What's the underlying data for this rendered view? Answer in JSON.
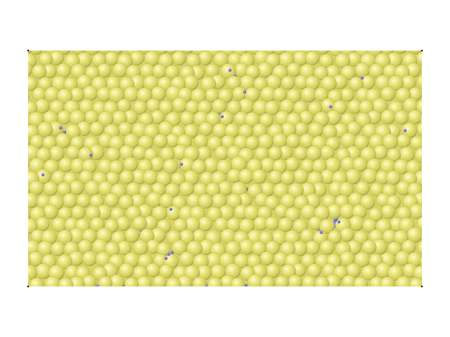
{
  "scene": {
    "background_color": "#ffffff",
    "large_particle_color": "#e6e27a",
    "large_particle_highlight": "#fbfac8",
    "large_particle_shade": "#a9a448",
    "small_particle_color": "#6b6ee6",
    "small_particle_shade": "#3a3db0",
    "box_corner_marker_color": "#222222",
    "large_particle_label": "large-yellow-sphere",
    "small_particle_label": "small-blue-sphere"
  }
}
